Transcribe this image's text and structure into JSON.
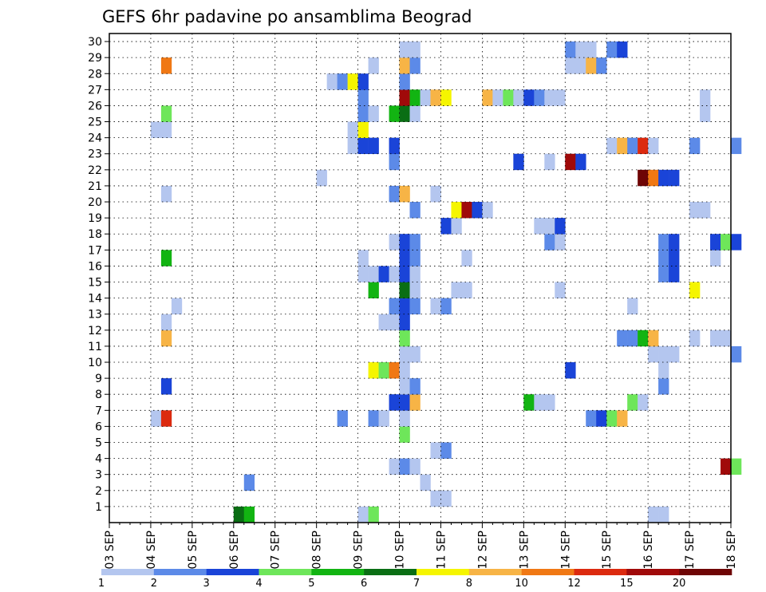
{
  "chart_data": {
    "type": "heatmap",
    "title": "GEFS 6hr padavine po ansamblima Beograd",
    "xlabel": "",
    "ylabel": "",
    "x_ticks": [
      "03 SEP",
      "04 SEP",
      "05 SEP",
      "06 SEP",
      "07 SEP",
      "08 SEP",
      "09 SEP",
      "10 SEP",
      "11 SEP",
      "12 SEP",
      "13 SEP",
      "14 SEP",
      "15 SEP",
      "16 SEP",
      "17 SEP",
      "18 SEP"
    ],
    "y_ticks": [
      "1",
      "2",
      "3",
      "4",
      "5",
      "6",
      "7",
      "8",
      "9",
      "10",
      "11",
      "12",
      "13",
      "14",
      "15",
      "16",
      "17",
      "18",
      "19",
      "20",
      "21",
      "22",
      "23",
      "24",
      "25",
      "26",
      "27",
      "28",
      "29",
      "30"
    ],
    "x_range": [
      "03 SEP 00Z",
      "18 SEP 00Z"
    ],
    "y_range": [
      0,
      30
    ],
    "grid": true,
    "time_step_hours": 6,
    "legend": {
      "placement": "bottom",
      "colors": [
        "#b4c6ef",
        "#5c8ae8",
        "#1a44d8",
        "#6ee65a",
        "#12b412",
        "#0a6e14",
        "#f5f500",
        "#f7b446",
        "#f07814",
        "#dc2a0f",
        "#a00a0a",
        "#6e0505"
      ],
      "labels": [
        "1",
        "2",
        "3",
        "4",
        "5",
        "6",
        "7",
        "8",
        "10",
        "12",
        "15",
        "20"
      ]
    },
    "cells": [
      {
        "member": 0,
        "t": 12,
        "c": 6
      },
      {
        "member": 0,
        "t": 13,
        "c": 5
      },
      {
        "member": 0,
        "t": 24,
        "c": 1
      },
      {
        "member": 0,
        "t": 25,
        "c": 4
      },
      {
        "member": 0,
        "t": 52,
        "c": 1
      },
      {
        "member": 0,
        "t": 53,
        "c": 1
      },
      {
        "member": 1,
        "t": 31,
        "c": 1
      },
      {
        "member": 1,
        "t": 32,
        "c": 1
      },
      {
        "member": 2,
        "t": 13,
        "c": 2
      },
      {
        "member": 2,
        "t": 30,
        "c": 1
      },
      {
        "member": 3,
        "t": 27,
        "c": 1
      },
      {
        "member": 3,
        "t": 28,
        "c": 2
      },
      {
        "member": 3,
        "t": 29,
        "c": 1
      },
      {
        "member": 3,
        "t": 59,
        "c": 11
      },
      {
        "member": 3,
        "t": 60,
        "c": 4
      },
      {
        "member": 4,
        "t": 31,
        "c": 1
      },
      {
        "member": 4,
        "t": 32,
        "c": 2
      },
      {
        "member": 5,
        "t": 28,
        "c": 4
      },
      {
        "member": 6,
        "t": 4,
        "c": 1
      },
      {
        "member": 6,
        "t": 5,
        "c": 10
      },
      {
        "member": 6,
        "t": 22,
        "c": 2
      },
      {
        "member": 6,
        "t": 25,
        "c": 2
      },
      {
        "member": 6,
        "t": 26,
        "c": 1
      },
      {
        "member": 6,
        "t": 28,
        "c": 1
      },
      {
        "member": 6,
        "t": 46,
        "c": 2
      },
      {
        "member": 6,
        "t": 47,
        "c": 3
      },
      {
        "member": 6,
        "t": 48,
        "c": 4
      },
      {
        "member": 6,
        "t": 49,
        "c": 8
      },
      {
        "member": 7,
        "t": 27,
        "c": 3
      },
      {
        "member": 7,
        "t": 28,
        "c": 3
      },
      {
        "member": 7,
        "t": 29,
        "c": 8
      },
      {
        "member": 7,
        "t": 40,
        "c": 5
      },
      {
        "member": 7,
        "t": 41,
        "c": 1
      },
      {
        "member": 7,
        "t": 42,
        "c": 1
      },
      {
        "member": 7,
        "t": 50,
        "c": 4
      },
      {
        "member": 7,
        "t": 51,
        "c": 1
      },
      {
        "member": 8,
        "t": 5,
        "c": 3
      },
      {
        "member": 8,
        "t": 28,
        "c": 1
      },
      {
        "member": 8,
        "t": 29,
        "c": 2
      },
      {
        "member": 8,
        "t": 53,
        "c": 2
      },
      {
        "member": 9,
        "t": 25,
        "c": 7
      },
      {
        "member": 9,
        "t": 26,
        "c": 4
      },
      {
        "member": 9,
        "t": 27,
        "c": 9
      },
      {
        "member": 9,
        "t": 28,
        "c": 1
      },
      {
        "member": 9,
        "t": 44,
        "c": 3
      },
      {
        "member": 9,
        "t": 53,
        "c": 1
      },
      {
        "member": 10,
        "t": 28,
        "c": 1
      },
      {
        "member": 10,
        "t": 29,
        "c": 1
      },
      {
        "member": 10,
        "t": 52,
        "c": 1
      },
      {
        "member": 10,
        "t": 53,
        "c": 1
      },
      {
        "member": 10,
        "t": 54,
        "c": 1
      },
      {
        "member": 10,
        "t": 60,
        "c": 2
      },
      {
        "member": 11,
        "t": 5,
        "c": 8
      },
      {
        "member": 11,
        "t": 28,
        "c": 4
      },
      {
        "member": 11,
        "t": 49,
        "c": 2
      },
      {
        "member": 11,
        "t": 50,
        "c": 2
      },
      {
        "member": 11,
        "t": 51,
        "c": 5
      },
      {
        "member": 11,
        "t": 52,
        "c": 8
      },
      {
        "member": 11,
        "t": 56,
        "c": 1
      },
      {
        "member": 11,
        "t": 58,
        "c": 1
      },
      {
        "member": 11,
        "t": 59,
        "c": 1
      },
      {
        "member": 12,
        "t": 5,
        "c": 1
      },
      {
        "member": 12,
        "t": 26,
        "c": 1
      },
      {
        "member": 12,
        "t": 27,
        "c": 1
      },
      {
        "member": 12,
        "t": 28,
        "c": 3
      },
      {
        "member": 13,
        "t": 6,
        "c": 1
      },
      {
        "member": 13,
        "t": 27,
        "c": 2
      },
      {
        "member": 13,
        "t": 28,
        "c": 3
      },
      {
        "member": 13,
        "t": 29,
        "c": 2
      },
      {
        "member": 13,
        "t": 31,
        "c": 1
      },
      {
        "member": 13,
        "t": 32,
        "c": 2
      },
      {
        "member": 13,
        "t": 50,
        "c": 1
      },
      {
        "member": 14,
        "t": 25,
        "c": 5
      },
      {
        "member": 14,
        "t": 28,
        "c": 6
      },
      {
        "member": 14,
        "t": 29,
        "c": 1
      },
      {
        "member": 14,
        "t": 33,
        "c": 1
      },
      {
        "member": 14,
        "t": 34,
        "c": 1
      },
      {
        "member": 14,
        "t": 43,
        "c": 1
      },
      {
        "member": 14,
        "t": 56,
        "c": 7
      },
      {
        "member": 15,
        "t": 24,
        "c": 1
      },
      {
        "member": 15,
        "t": 25,
        "c": 1
      },
      {
        "member": 15,
        "t": 26,
        "c": 3
      },
      {
        "member": 15,
        "t": 27,
        "c": 1
      },
      {
        "member": 15,
        "t": 28,
        "c": 3
      },
      {
        "member": 15,
        "t": 29,
        "c": 1
      },
      {
        "member": 15,
        "t": 53,
        "c": 2
      },
      {
        "member": 15,
        "t": 54,
        "c": 3
      },
      {
        "member": 16,
        "t": 5,
        "c": 5
      },
      {
        "member": 16,
        "t": 24,
        "c": 1
      },
      {
        "member": 16,
        "t": 28,
        "c": 3
      },
      {
        "member": 16,
        "t": 29,
        "c": 2
      },
      {
        "member": 16,
        "t": 34,
        "c": 1
      },
      {
        "member": 16,
        "t": 53,
        "c": 2
      },
      {
        "member": 16,
        "t": 54,
        "c": 3
      },
      {
        "member": 16,
        "t": 58,
        "c": 1
      },
      {
        "member": 17,
        "t": 27,
        "c": 1
      },
      {
        "member": 17,
        "t": 28,
        "c": 3
      },
      {
        "member": 17,
        "t": 29,
        "c": 2
      },
      {
        "member": 17,
        "t": 42,
        "c": 2
      },
      {
        "member": 17,
        "t": 43,
        "c": 1
      },
      {
        "member": 17,
        "t": 53,
        "c": 2
      },
      {
        "member": 17,
        "t": 54,
        "c": 3
      },
      {
        "member": 17,
        "t": 58,
        "c": 3
      },
      {
        "member": 17,
        "t": 59,
        "c": 4
      },
      {
        "member": 17,
        "t": 60,
        "c": 3
      },
      {
        "member": 18,
        "t": 32,
        "c": 3
      },
      {
        "member": 18,
        "t": 33,
        "c": 1
      },
      {
        "member": 18,
        "t": 41,
        "c": 1
      },
      {
        "member": 18,
        "t": 42,
        "c": 1
      },
      {
        "member": 18,
        "t": 43,
        "c": 3
      },
      {
        "member": 19,
        "t": 29,
        "c": 2
      },
      {
        "member": 19,
        "t": 33,
        "c": 7
      },
      {
        "member": 19,
        "t": 34,
        "c": 11
      },
      {
        "member": 19,
        "t": 35,
        "c": 3
      },
      {
        "member": 19,
        "t": 36,
        "c": 1
      },
      {
        "member": 19,
        "t": 56,
        "c": 1
      },
      {
        "member": 19,
        "t": 57,
        "c": 1
      },
      {
        "member": 20,
        "t": 5,
        "c": 1
      },
      {
        "member": 20,
        "t": 27,
        "c": 2
      },
      {
        "member": 20,
        "t": 28,
        "c": 8
      },
      {
        "member": 20,
        "t": 31,
        "c": 1
      },
      {
        "member": 21,
        "t": 20,
        "c": 1
      },
      {
        "member": 21,
        "t": 51,
        "c": 12
      },
      {
        "member": 21,
        "t": 52,
        "c": 9
      },
      {
        "member": 21,
        "t": 53,
        "c": 3
      },
      {
        "member": 21,
        "t": 54,
        "c": 3
      },
      {
        "member": 22,
        "t": 27,
        "c": 2
      },
      {
        "member": 22,
        "t": 39,
        "c": 3
      },
      {
        "member": 22,
        "t": 42,
        "c": 1
      },
      {
        "member": 22,
        "t": 44,
        "c": 11
      },
      {
        "member": 22,
        "t": 45,
        "c": 3
      },
      {
        "member": 23,
        "t": 23,
        "c": 1
      },
      {
        "member": 23,
        "t": 24,
        "c": 3
      },
      {
        "member": 23,
        "t": 25,
        "c": 3
      },
      {
        "member": 23,
        "t": 27,
        "c": 3
      },
      {
        "member": 23,
        "t": 48,
        "c": 1
      },
      {
        "member": 23,
        "t": 49,
        "c": 8
      },
      {
        "member": 23,
        "t": 50,
        "c": 2
      },
      {
        "member": 23,
        "t": 51,
        "c": 10
      },
      {
        "member": 23,
        "t": 52,
        "c": 1
      },
      {
        "member": 23,
        "t": 56,
        "c": 2
      },
      {
        "member": 23,
        "t": 60,
        "c": 2
      },
      {
        "member": 24,
        "t": 4,
        "c": 1
      },
      {
        "member": 24,
        "t": 5,
        "c": 1
      },
      {
        "member": 24,
        "t": 23,
        "c": 1
      },
      {
        "member": 24,
        "t": 24,
        "c": 7
      },
      {
        "member": 25,
        "t": 5,
        "c": 4
      },
      {
        "member": 25,
        "t": 24,
        "c": 2
      },
      {
        "member": 25,
        "t": 25,
        "c": 1
      },
      {
        "member": 25,
        "t": 27,
        "c": 5
      },
      {
        "member": 25,
        "t": 28,
        "c": 6
      },
      {
        "member": 25,
        "t": 29,
        "c": 1
      },
      {
        "member": 25,
        "t": 57,
        "c": 1
      },
      {
        "member": 26,
        "t": 24,
        "c": 2
      },
      {
        "member": 26,
        "t": 28,
        "c": 11
      },
      {
        "member": 26,
        "t": 29,
        "c": 5
      },
      {
        "member": 26,
        "t": 30,
        "c": 1
      },
      {
        "member": 26,
        "t": 31,
        "c": 8
      },
      {
        "member": 26,
        "t": 32,
        "c": 7
      },
      {
        "member": 26,
        "t": 36,
        "c": 8
      },
      {
        "member": 26,
        "t": 37,
        "c": 1
      },
      {
        "member": 26,
        "t": 38,
        "c": 4
      },
      {
        "member": 26,
        "t": 39,
        "c": 1
      },
      {
        "member": 26,
        "t": 40,
        "c": 3
      },
      {
        "member": 26,
        "t": 41,
        "c": 2
      },
      {
        "member": 26,
        "t": 42,
        "c": 1
      },
      {
        "member": 26,
        "t": 43,
        "c": 1
      },
      {
        "member": 26,
        "t": 57,
        "c": 1
      },
      {
        "member": 27,
        "t": 21,
        "c": 1
      },
      {
        "member": 27,
        "t": 22,
        "c": 2
      },
      {
        "member": 27,
        "t": 23,
        "c": 7
      },
      {
        "member": 27,
        "t": 24,
        "c": 3
      },
      {
        "member": 27,
        "t": 28,
        "c": 2
      },
      {
        "member": 28,
        "t": 5,
        "c": 9
      },
      {
        "member": 28,
        "t": 25,
        "c": 1
      },
      {
        "member": 28,
        "t": 28,
        "c": 8
      },
      {
        "member": 28,
        "t": 29,
        "c": 2
      },
      {
        "member": 28,
        "t": 44,
        "c": 1
      },
      {
        "member": 28,
        "t": 45,
        "c": 1
      },
      {
        "member": 28,
        "t": 46,
        "c": 8
      },
      {
        "member": 28,
        "t": 47,
        "c": 2
      },
      {
        "member": 29,
        "t": 28,
        "c": 1
      },
      {
        "member": 29,
        "t": 29,
        "c": 1
      },
      {
        "member": 29,
        "t": 44,
        "c": 2
      },
      {
        "member": 29,
        "t": 45,
        "c": 1
      },
      {
        "member": 29,
        "t": 46,
        "c": 1
      },
      {
        "member": 29,
        "t": 48,
        "c": 2
      },
      {
        "member": 29,
        "t": 49,
        "c": 3
      }
    ]
  }
}
